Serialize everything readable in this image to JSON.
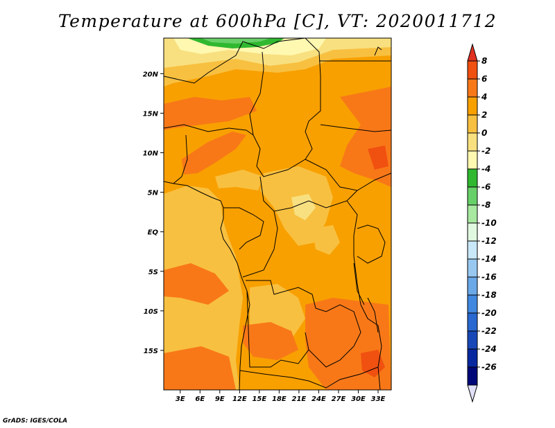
{
  "title": "Temperature at 600hPa [C], VT: 2020011712",
  "footer": "GrADS: IGES/COLA",
  "map": {
    "lat_labels": [
      "20N",
      "15N",
      "10N",
      "5N",
      "EQ",
      "5S",
      "10S",
      "15S"
    ],
    "lat_values": [
      20,
      15,
      10,
      5,
      0,
      -5,
      -10,
      -15
    ],
    "lon_labels": [
      "3E",
      "6E",
      "9E",
      "12E",
      "15E",
      "18E",
      "21E",
      "24E",
      "27E",
      "30E",
      "33E"
    ],
    "lon_values": [
      3,
      6,
      9,
      12,
      15,
      18,
      21,
      24,
      27,
      30,
      33
    ],
    "extent": {
      "lon": [
        0.5,
        35
      ],
      "lat": [
        -20,
        24.5
      ]
    }
  },
  "colorbar": {
    "labels": [
      "8",
      "6",
      "4",
      "2",
      "0",
      "-2",
      "-4",
      "-6",
      "-8",
      "-10",
      "-12",
      "-14",
      "-16",
      "-18",
      "-20",
      "-22",
      "-24",
      "-26"
    ],
    "colors": [
      "#e03020",
      "#f05010",
      "#f87818",
      "#f8a000",
      "#f8c040",
      "#f8e080",
      "#fff8b0",
      "#30b830",
      "#68d068",
      "#a8e8a0",
      "#e0f8e0",
      "#c8e8f8",
      "#98c8f0",
      "#6aa8e8",
      "#4088e0",
      "#2868d0",
      "#1848b8",
      "#0828a0",
      "#000878",
      "#e0e0f8"
    ]
  },
  "palette": {
    "t4to6": "#f87818",
    "t2to4": "#f8a000",
    "t0to2": "#f8c040",
    "tm2to0": "#f8e080",
    "tm4tom2": "#fff8b0",
    "tm6tom4": "#30b830"
  }
}
